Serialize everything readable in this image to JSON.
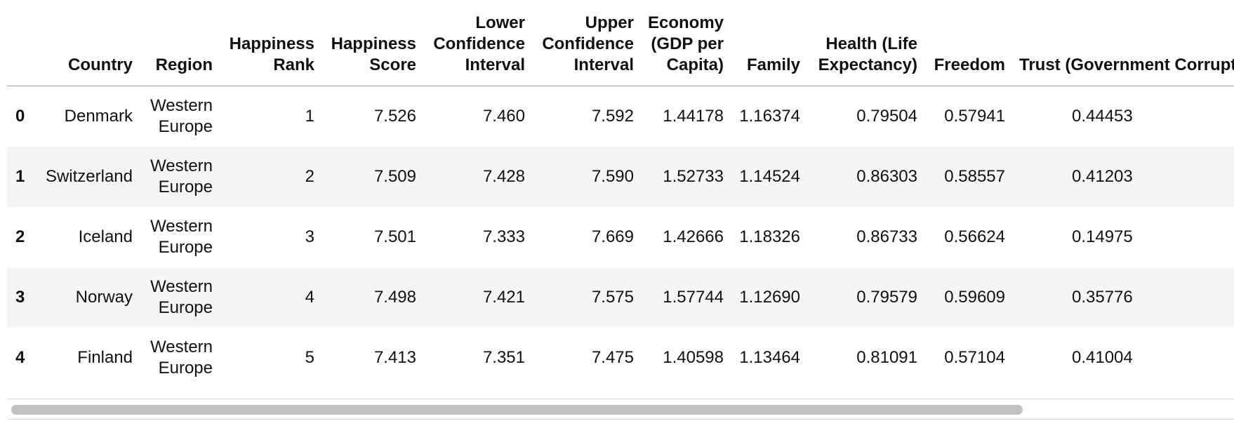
{
  "table": {
    "columns": [
      "",
      "Country",
      "Region",
      "Happiness Rank",
      "Happiness Score",
      "Lower Confidence Interval",
      "Upper Confidence Interval",
      "Economy (GDP per Capita)",
      "Family",
      "Health (Life Expectancy)",
      "Freedom",
      "Trust (Government Corruption)"
    ],
    "rows": [
      {
        "index": "0",
        "country": "Denmark",
        "region": "Western Europe",
        "rank": "1",
        "score": "7.526",
        "lower": "7.460",
        "upper": "7.592",
        "economy": "1.44178",
        "family": "1.16374",
        "health": "0.79504",
        "freedom": "0.57941",
        "trust": "0.44453"
      },
      {
        "index": "1",
        "country": "Switzerland",
        "region": "Western Europe",
        "rank": "2",
        "score": "7.509",
        "lower": "7.428",
        "upper": "7.590",
        "economy": "1.52733",
        "family": "1.14524",
        "health": "0.86303",
        "freedom": "0.58557",
        "trust": "0.41203"
      },
      {
        "index": "2",
        "country": "Iceland",
        "region": "Western Europe",
        "rank": "3",
        "score": "7.501",
        "lower": "7.333",
        "upper": "7.669",
        "economy": "1.42666",
        "family": "1.18326",
        "health": "0.86733",
        "freedom": "0.56624",
        "trust": "0.14975"
      },
      {
        "index": "3",
        "country": "Norway",
        "region": "Western Europe",
        "rank": "4",
        "score": "7.498",
        "lower": "7.421",
        "upper": "7.575",
        "economy": "1.57744",
        "family": "1.12690",
        "health": "0.79579",
        "freedom": "0.59609",
        "trust": "0.35776"
      },
      {
        "index": "4",
        "country": "Finland",
        "region": "Western Europe",
        "rank": "5",
        "score": "7.413",
        "lower": "7.351",
        "upper": "7.475",
        "economy": "1.40598",
        "family": "1.13464",
        "health": "0.81091",
        "freedom": "0.57104",
        "trust": "0.41004"
      }
    ]
  },
  "scrollbar": {
    "thumb_fraction": 0.83
  }
}
